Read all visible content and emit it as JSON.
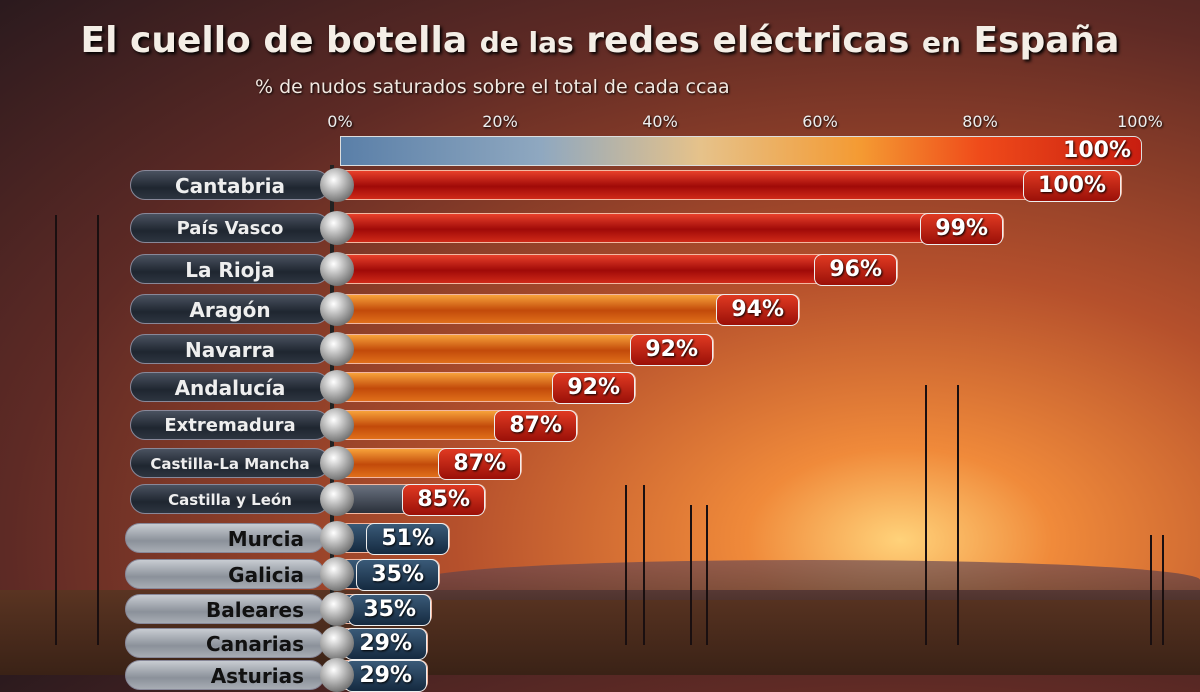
{
  "chart_data": {
    "type": "bar",
    "title_main": "El cuello de botella",
    "title_mid": "de las",
    "title_end": "redes eléctricas",
    "title_en": "en",
    "title_country": "España",
    "subtitle": "% de nudos saturados sobre el total de cada ccaa",
    "xlim": [
      0,
      100
    ],
    "x_ticks": [
      "0%",
      "20%",
      "40%",
      "60%",
      "80%",
      "100%"
    ],
    "scale_label": "100%",
    "categories": [
      "Cantabria",
      "País Vasco",
      "La Rioja",
      "Aragón",
      "Navarra",
      "Andalucía",
      "Extremadura",
      "Castilla-La Mancha",
      "Castilla y León",
      "Murcia",
      "Galicia",
      "Baleares",
      "Canarias",
      "Asturias"
    ],
    "values": [
      100,
      99,
      96,
      94,
      92,
      92,
      87,
      87,
      85,
      51,
      35,
      35,
      29,
      29
    ],
    "labels": [
      "100%",
      "99%",
      "96%",
      "94%",
      "92%",
      "92%",
      "87%",
      "87%",
      "85%",
      "51%",
      "35%",
      "35%",
      "29%",
      "29%"
    ],
    "colors": {
      "high": "#c01810",
      "mid": "#e0701a",
      "low": "#1e3a55"
    }
  }
}
